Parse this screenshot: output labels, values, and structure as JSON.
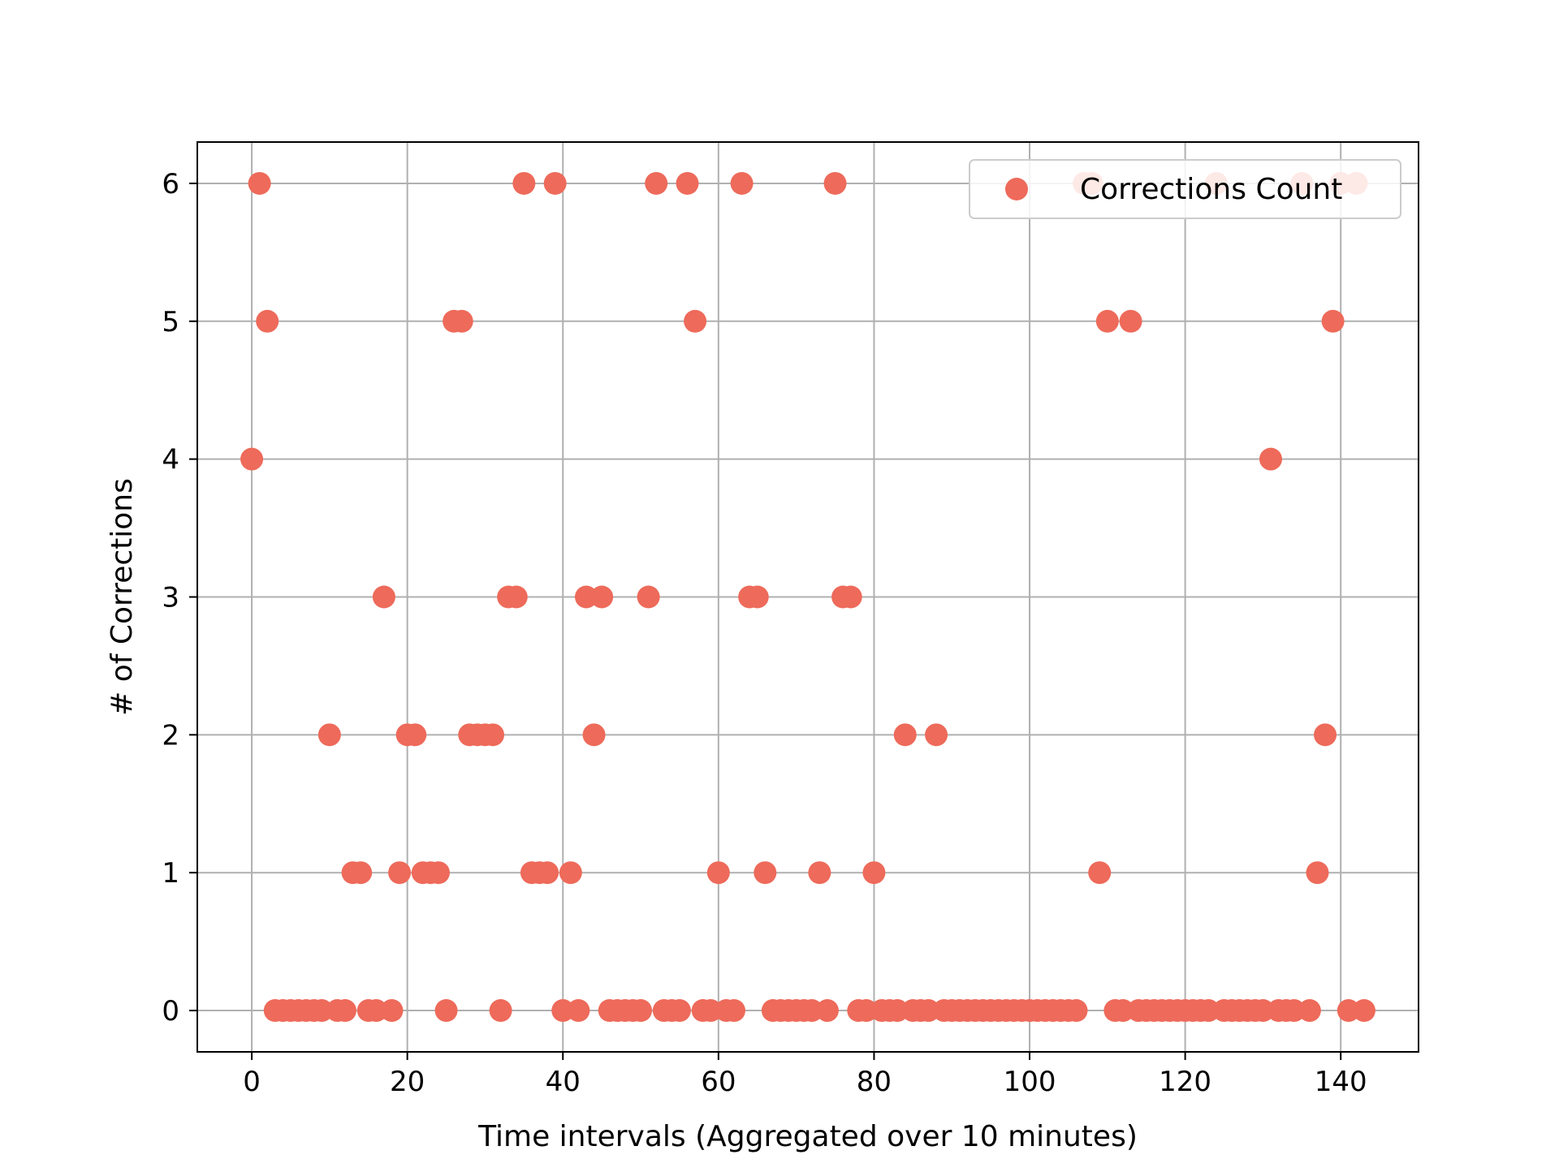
{
  "chart_data": {
    "type": "scatter",
    "xlabel": "Time intervals (Aggregated over 10 minutes)",
    "ylabel": "# of Corrections",
    "xlim": [
      -7,
      150
    ],
    "ylim": [
      -0.3,
      6.3
    ],
    "xticks": [
      0,
      20,
      40,
      60,
      80,
      100,
      120,
      140
    ],
    "yticks": [
      0,
      1,
      2,
      3,
      4,
      5,
      6
    ],
    "grid": true,
    "legend_position": "top-right",
    "colors": {
      "marker": "#ee6a5a",
      "grid": "#b0b0b0",
      "axes": "#000000"
    },
    "series": [
      {
        "name": "Corrections Count",
        "x": [
          0,
          1,
          2,
          3,
          4,
          5,
          6,
          7,
          8,
          9,
          10,
          11,
          12,
          13,
          14,
          15,
          16,
          17,
          18,
          19,
          20,
          21,
          22,
          23,
          24,
          25,
          26,
          27,
          28,
          29,
          30,
          31,
          32,
          33,
          34,
          35,
          36,
          37,
          38,
          39,
          40,
          41,
          42,
          43,
          44,
          45,
          46,
          47,
          48,
          49,
          50,
          51,
          52,
          53,
          54,
          55,
          56,
          57,
          58,
          59,
          60,
          61,
          62,
          63,
          64,
          65,
          66,
          67,
          68,
          69,
          70,
          71,
          72,
          73,
          74,
          75,
          76,
          77,
          78,
          79,
          80,
          81,
          82,
          83,
          84,
          85,
          86,
          87,
          88,
          89,
          90,
          91,
          92,
          93,
          94,
          95,
          96,
          97,
          98,
          99,
          100,
          101,
          102,
          103,
          104,
          105,
          106,
          107,
          108,
          109,
          110,
          111,
          112,
          113,
          114,
          115,
          116,
          117,
          118,
          119,
          120,
          121,
          122,
          123,
          124,
          125,
          126,
          127,
          128,
          129,
          130,
          131,
          132,
          133,
          134,
          135,
          136,
          137,
          138,
          139,
          140,
          141,
          142,
          143
        ],
        "y": [
          4,
          6,
          5,
          0,
          0,
          0,
          0,
          0,
          0,
          0,
          2,
          0,
          0,
          1,
          1,
          0,
          0,
          3,
          0,
          1,
          2,
          2,
          1,
          1,
          1,
          0,
          5,
          5,
          2,
          2,
          2,
          2,
          0,
          3,
          3,
          6,
          1,
          1,
          1,
          6,
          0,
          1,
          0,
          3,
          2,
          3,
          0,
          0,
          0,
          0,
          0,
          3,
          6,
          0,
          0,
          0,
          6,
          5,
          0,
          0,
          1,
          0,
          0,
          6,
          3,
          3,
          1,
          0,
          0,
          0,
          0,
          0,
          0,
          1,
          0,
          6,
          3,
          3,
          0,
          0,
          1,
          0,
          0,
          0,
          2,
          0,
          0,
          0,
          2,
          0,
          0,
          0,
          0,
          0,
          0,
          0,
          0,
          0,
          0,
          0,
          0,
          0,
          0,
          0,
          0,
          0,
          0,
          6,
          6,
          1,
          5,
          0,
          0,
          5,
          0,
          0,
          0,
          0,
          0,
          0,
          0,
          0,
          0,
          0,
          6,
          0,
          0,
          0,
          0,
          0,
          0,
          4,
          0,
          0,
          0,
          6,
          0,
          1,
          2,
          5,
          6,
          0,
          6,
          0
        ]
      }
    ]
  }
}
